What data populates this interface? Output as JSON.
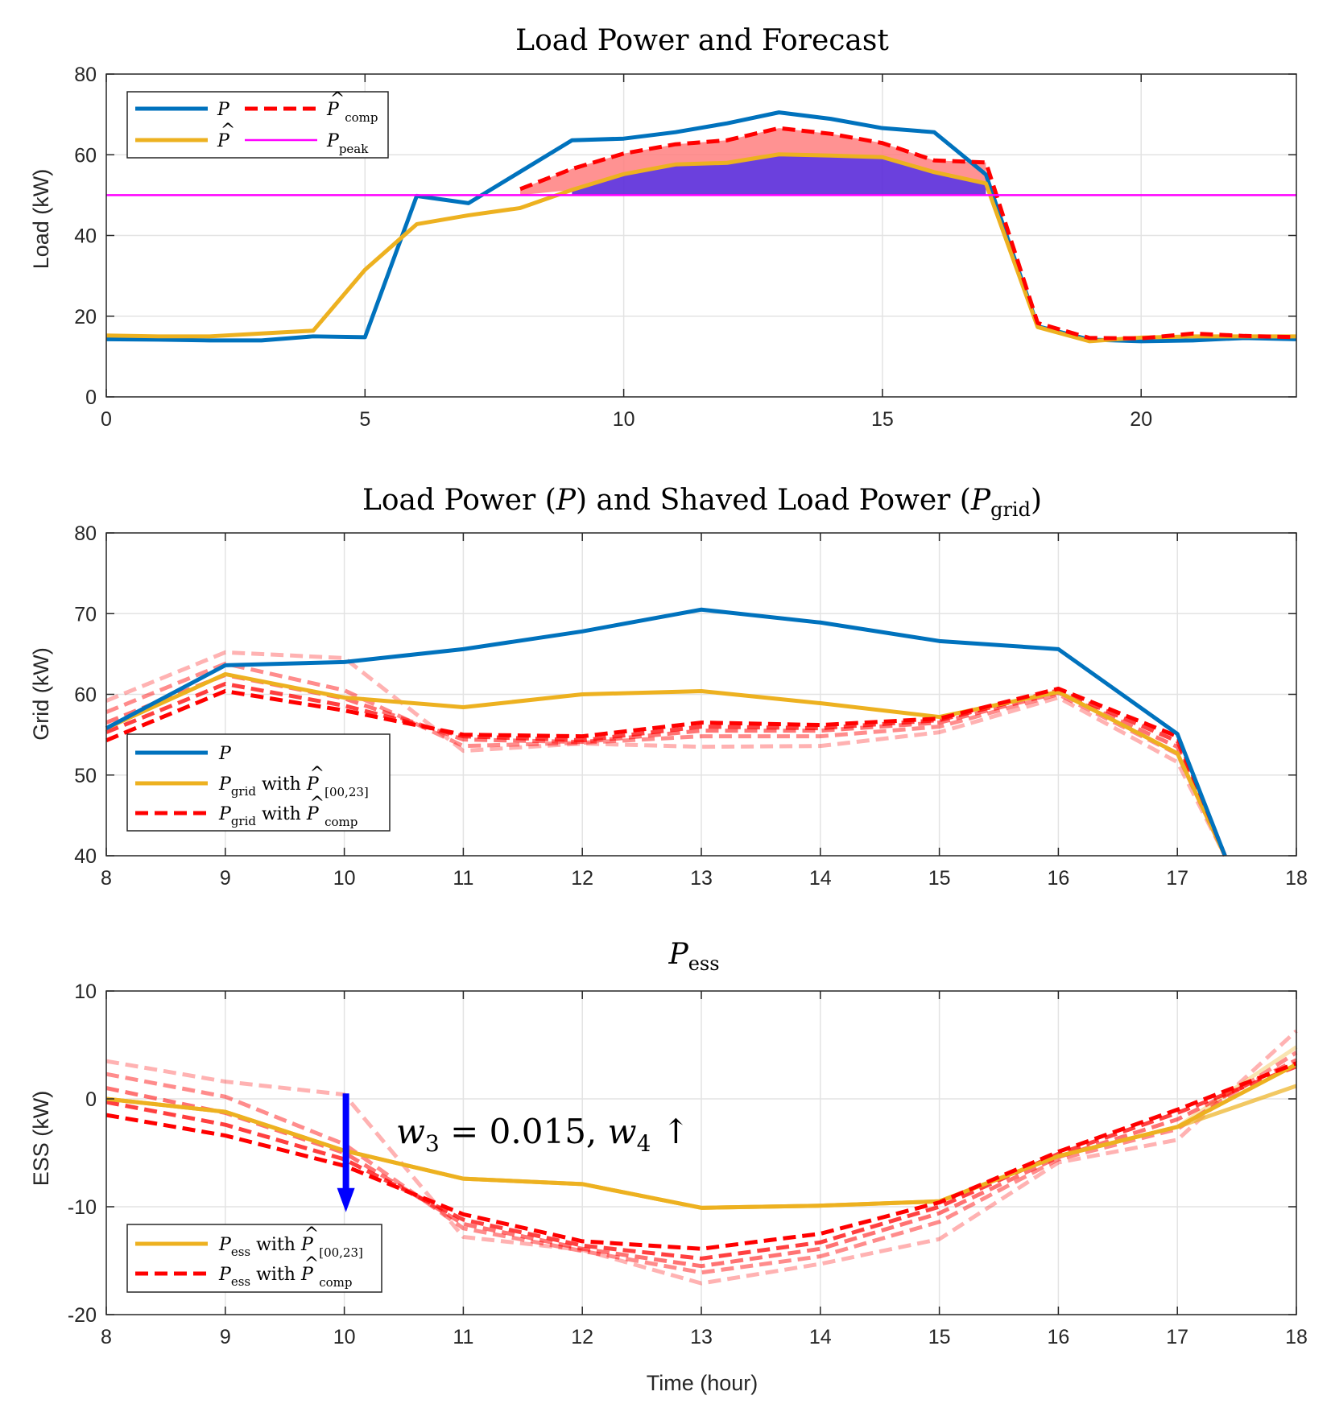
{
  "colors": {
    "P": "#0072BD",
    "forecast": "#EDB120",
    "comp": "#FF0000",
    "peak": "#FF00FF",
    "fill_red": "#FF7F7F",
    "fill_blue": "#5B2BD9",
    "arrow": "#0000FF",
    "grid": "#E3E3E3",
    "axis": "#262626"
  },
  "chart_data": [
    {
      "type": "line",
      "title": "Load Power and Forecast",
      "xlabel": "",
      "ylabel": "Load (kW)",
      "xlim": [
        0,
        23
      ],
      "ylim": [
        0,
        80
      ],
      "xticks": [
        "0",
        "5",
        "10",
        "15",
        "20"
      ],
      "yticks": [
        "0",
        "20",
        "40",
        "60",
        "80"
      ],
      "legend": {
        "position": "top-left",
        "entries": [
          "P",
          "P̂",
          "P̂comp",
          "Ppeak"
        ]
      },
      "series": [
        {
          "name": "P",
          "style": "solid",
          "color_key": "P",
          "x": [
            0,
            1,
            2,
            3,
            4,
            5,
            6,
            7,
            8,
            9,
            10,
            11,
            12,
            13,
            14,
            15,
            16,
            17,
            18,
            19,
            20,
            21,
            22,
            23
          ],
          "y": [
            14.3,
            14.2,
            14.0,
            14.0,
            15.0,
            14.8,
            49.8,
            48.0,
            55.8,
            63.6,
            64.0,
            65.6,
            67.8,
            70.5,
            68.9,
            66.6,
            65.6,
            55.1,
            17.5,
            14.2,
            13.8,
            14.0,
            14.6,
            14.3
          ]
        },
        {
          "name": "P̂",
          "style": "solid",
          "color_key": "forecast",
          "x": [
            0,
            1,
            2,
            3,
            4,
            5,
            6,
            7,
            8,
            9,
            10,
            11,
            12,
            13,
            14,
            15,
            16,
            17,
            18,
            19,
            20,
            21,
            22,
            23
          ],
          "y": [
            15.2,
            15.0,
            15.0,
            15.7,
            16.4,
            31.5,
            42.8,
            45.0,
            46.8,
            51.3,
            55.2,
            57.6,
            58.0,
            60.1,
            59.8,
            59.4,
            55.7,
            52.9,
            17.3,
            13.8,
            14.7,
            15.0,
            15.0,
            15.0
          ]
        },
        {
          "name": "P̂comp",
          "style": "dashed",
          "color_key": "comp",
          "x": [
            8,
            9,
            10,
            11,
            12,
            13,
            14,
            15,
            16,
            17,
            18,
            19,
            20,
            21,
            22,
            23
          ],
          "y": [
            51.5,
            56.5,
            60.3,
            62.6,
            63.6,
            66.6,
            65.2,
            62.9,
            58.6,
            58.1,
            18.3,
            14.6,
            14.5,
            15.7,
            15.1,
            14.8
          ]
        },
        {
          "name": "Ppeak",
          "style": "solid",
          "color_key": "peak",
          "x": [
            0,
            23
          ],
          "y": [
            50,
            50
          ]
        }
      ]
    },
    {
      "type": "line",
      "title_parts": {
        "pre": "Load Power (",
        "v1": "P",
        "mid": ") and Shaved Load Power (",
        "v2": "P",
        "sub2": "grid",
        "post": ")"
      },
      "xlabel": "",
      "ylabel": "Grid (kW)",
      "xlim": [
        8,
        18
      ],
      "ylim": [
        40,
        80
      ],
      "xticks": [
        "8",
        "9",
        "10",
        "11",
        "12",
        "13",
        "14",
        "15",
        "16",
        "17",
        "18"
      ],
      "yticks": [
        "40",
        "50",
        "60",
        "70",
        "80"
      ],
      "legend": {
        "position": "bottom-left",
        "entries": [
          "P",
          "Pgrid with P̂[00,23]",
          "Pgrid with P̂comp"
        ]
      },
      "series": [
        {
          "name": "P",
          "style": "solid",
          "color_key": "P",
          "x": [
            8,
            9,
            10,
            11,
            12,
            13,
            14,
            15,
            16,
            17,
            17.4
          ],
          "y": [
            55.8,
            63.6,
            64.0,
            65.6,
            67.8,
            70.5,
            68.9,
            66.6,
            65.6,
            55.1,
            40
          ]
        },
        {
          "name": "Pgrid with P̂[00,23]",
          "style": "solid",
          "color_key": "forecast",
          "x": [
            8,
            9,
            10,
            11,
            12,
            13,
            14,
            15,
            16,
            17,
            17.4
          ],
          "y": [
            55.8,
            62.5,
            59.6,
            58.4,
            60.0,
            60.4,
            58.9,
            57.2,
            60.3,
            52.7,
            40
          ]
        },
        {
          "name": "Pgrid with P̂comp",
          "style": "dashed",
          "color_key": "comp",
          "opacity": 1.0,
          "x": [
            8,
            9,
            10,
            11,
            12,
            13,
            14,
            15,
            16,
            17,
            17.4
          ],
          "y": [
            54.3,
            60.4,
            58.0,
            55.0,
            54.8,
            56.5,
            56.2,
            57.0,
            60.7,
            54.8,
            40
          ]
        },
        {
          "name": "comp run 2",
          "style": "dashed",
          "color_key": "comp",
          "opacity": 0.75,
          "x": [
            8,
            9,
            10,
            11,
            12,
            13,
            14,
            15,
            16,
            17,
            17.4
          ],
          "y": [
            55.3,
            61.3,
            58.6,
            54.8,
            54.3,
            56.0,
            55.8,
            56.8,
            60.5,
            54.2,
            40
          ]
        },
        {
          "name": "comp run 3",
          "style": "dashed",
          "color_key": "comp",
          "opacity": 0.55,
          "x": [
            8,
            9,
            10,
            11,
            12,
            13,
            14,
            15,
            16,
            17,
            17.4
          ],
          "y": [
            56.5,
            62.4,
            59.5,
            54.4,
            54.1,
            55.5,
            55.5,
            56.5,
            60.2,
            53.5,
            40
          ]
        },
        {
          "name": "comp run 4",
          "style": "dashed",
          "color_key": "comp",
          "opacity": 0.45,
          "x": [
            8,
            9,
            10,
            11,
            12,
            13,
            14,
            15,
            16,
            17,
            17.4
          ],
          "y": [
            57.8,
            63.8,
            60.5,
            53.6,
            54.0,
            54.8,
            54.8,
            56.0,
            60.0,
            52.6,
            40
          ]
        },
        {
          "name": "comp run 5",
          "style": "dashed",
          "color_key": "comp",
          "opacity": 0.3,
          "x": [
            8,
            9,
            10,
            11,
            12,
            13,
            14,
            15,
            16,
            17,
            17.4
          ],
          "y": [
            59.2,
            65.2,
            64.5,
            53.0,
            53.9,
            53.5,
            53.6,
            55.3,
            59.6,
            51.6,
            40
          ]
        }
      ]
    },
    {
      "type": "line",
      "title_parts": {
        "v": "P",
        "sub": "ess"
      },
      "xlabel": "Time (hour)",
      "ylabel": "ESS (kW)",
      "xlim": [
        8,
        18
      ],
      "ylim": [
        -20,
        10
      ],
      "xticks": [
        "8",
        "9",
        "10",
        "11",
        "12",
        "13",
        "14",
        "15",
        "16",
        "17",
        "18"
      ],
      "yticks": [
        "-20",
        "-10",
        "0",
        "10"
      ],
      "legend": {
        "position": "bottom-left",
        "entries": [
          "Pess with P̂[00,23]",
          "Pess with P̂comp"
        ]
      },
      "annotation": {
        "text_parts": [
          "w",
          "3",
          " = 0.015, ",
          "w",
          "4",
          " ↑"
        ],
        "arrow_x": 10,
        "arrow_from": 0.5,
        "arrow_to": -10.5
      },
      "series": [
        {
          "name": "Pess with P̂[00,23]",
          "style": "solid",
          "color_key": "forecast",
          "opacity": 1.0,
          "x": [
            8,
            9,
            10,
            11,
            12,
            13,
            14,
            15,
            16,
            17,
            18
          ],
          "y": [
            0.0,
            -1.2,
            -4.8,
            -7.4,
            -7.9,
            -10.1,
            -9.9,
            -9.5,
            -5.3,
            -2.6,
            3.2
          ]
        },
        {
          "name": "forecast run 2",
          "style": "solid",
          "color_key": "forecast",
          "opacity": 0.7,
          "x": [
            8,
            9,
            10,
            11,
            12,
            13,
            14,
            15,
            16,
            17,
            18
          ],
          "y": [
            0.0,
            -1.2,
            -4.8,
            -7.4,
            -7.9,
            -10.1,
            -9.9,
            -9.5,
            -5.3,
            -2.6,
            1.2
          ]
        },
        {
          "name": "forecast run 3",
          "style": "solid",
          "color_key": "forecast",
          "opacity": 0.35,
          "x": [
            8,
            9,
            10,
            11,
            12,
            13,
            14,
            15,
            16,
            17,
            18
          ],
          "y": [
            0.0,
            -1.2,
            -4.8,
            -7.4,
            -7.9,
            -10.1,
            -9.9,
            -9.5,
            -5.3,
            -2.6,
            4.8
          ]
        },
        {
          "name": "Pess with P̂comp",
          "style": "dashed",
          "color_key": "comp",
          "opacity": 1.0,
          "x": [
            8,
            9,
            10,
            11,
            12,
            13,
            14,
            15,
            16,
            17,
            18
          ],
          "y": [
            -1.5,
            -3.4,
            -6.2,
            -10.7,
            -13.2,
            -13.9,
            -12.5,
            -9.6,
            -4.9,
            -1.0,
            3.3
          ]
        },
        {
          "name": "comp run 2",
          "style": "dashed",
          "color_key": "comp",
          "opacity": 0.75,
          "x": [
            8,
            9,
            10,
            11,
            12,
            13,
            14,
            15,
            16,
            17,
            18
          ],
          "y": [
            -0.3,
            -2.4,
            -5.6,
            -11.2,
            -13.6,
            -14.8,
            -13.3,
            -10.0,
            -5.1,
            -1.3,
            3.0
          ]
        },
        {
          "name": "comp run 3",
          "style": "dashed",
          "color_key": "comp",
          "opacity": 0.55,
          "x": [
            8,
            9,
            10,
            11,
            12,
            13,
            14,
            15,
            16,
            17,
            18
          ],
          "y": [
            1.0,
            -1.3,
            -5.0,
            -11.6,
            -13.9,
            -15.5,
            -13.9,
            -10.6,
            -5.4,
            -1.9,
            3.6
          ]
        },
        {
          "name": "comp run 4",
          "style": "dashed",
          "color_key": "comp",
          "opacity": 0.45,
          "x": [
            8,
            9,
            10,
            11,
            12,
            13,
            14,
            15,
            16,
            17,
            18
          ],
          "y": [
            2.3,
            0.2,
            -4.2,
            -12.0,
            -14.1,
            -16.1,
            -14.6,
            -11.4,
            -5.6,
            -2.8,
            4.3
          ]
        },
        {
          "name": "comp run 5",
          "style": "dashed",
          "color_key": "comp",
          "opacity": 0.3,
          "x": [
            8,
            9,
            10,
            11,
            12,
            13,
            14,
            15,
            16,
            17,
            18
          ],
          "y": [
            3.5,
            1.6,
            0.4,
            -12.8,
            -14.0,
            -17.1,
            -15.3,
            -13.0,
            -5.9,
            -3.8,
            6.3
          ]
        }
      ]
    }
  ]
}
